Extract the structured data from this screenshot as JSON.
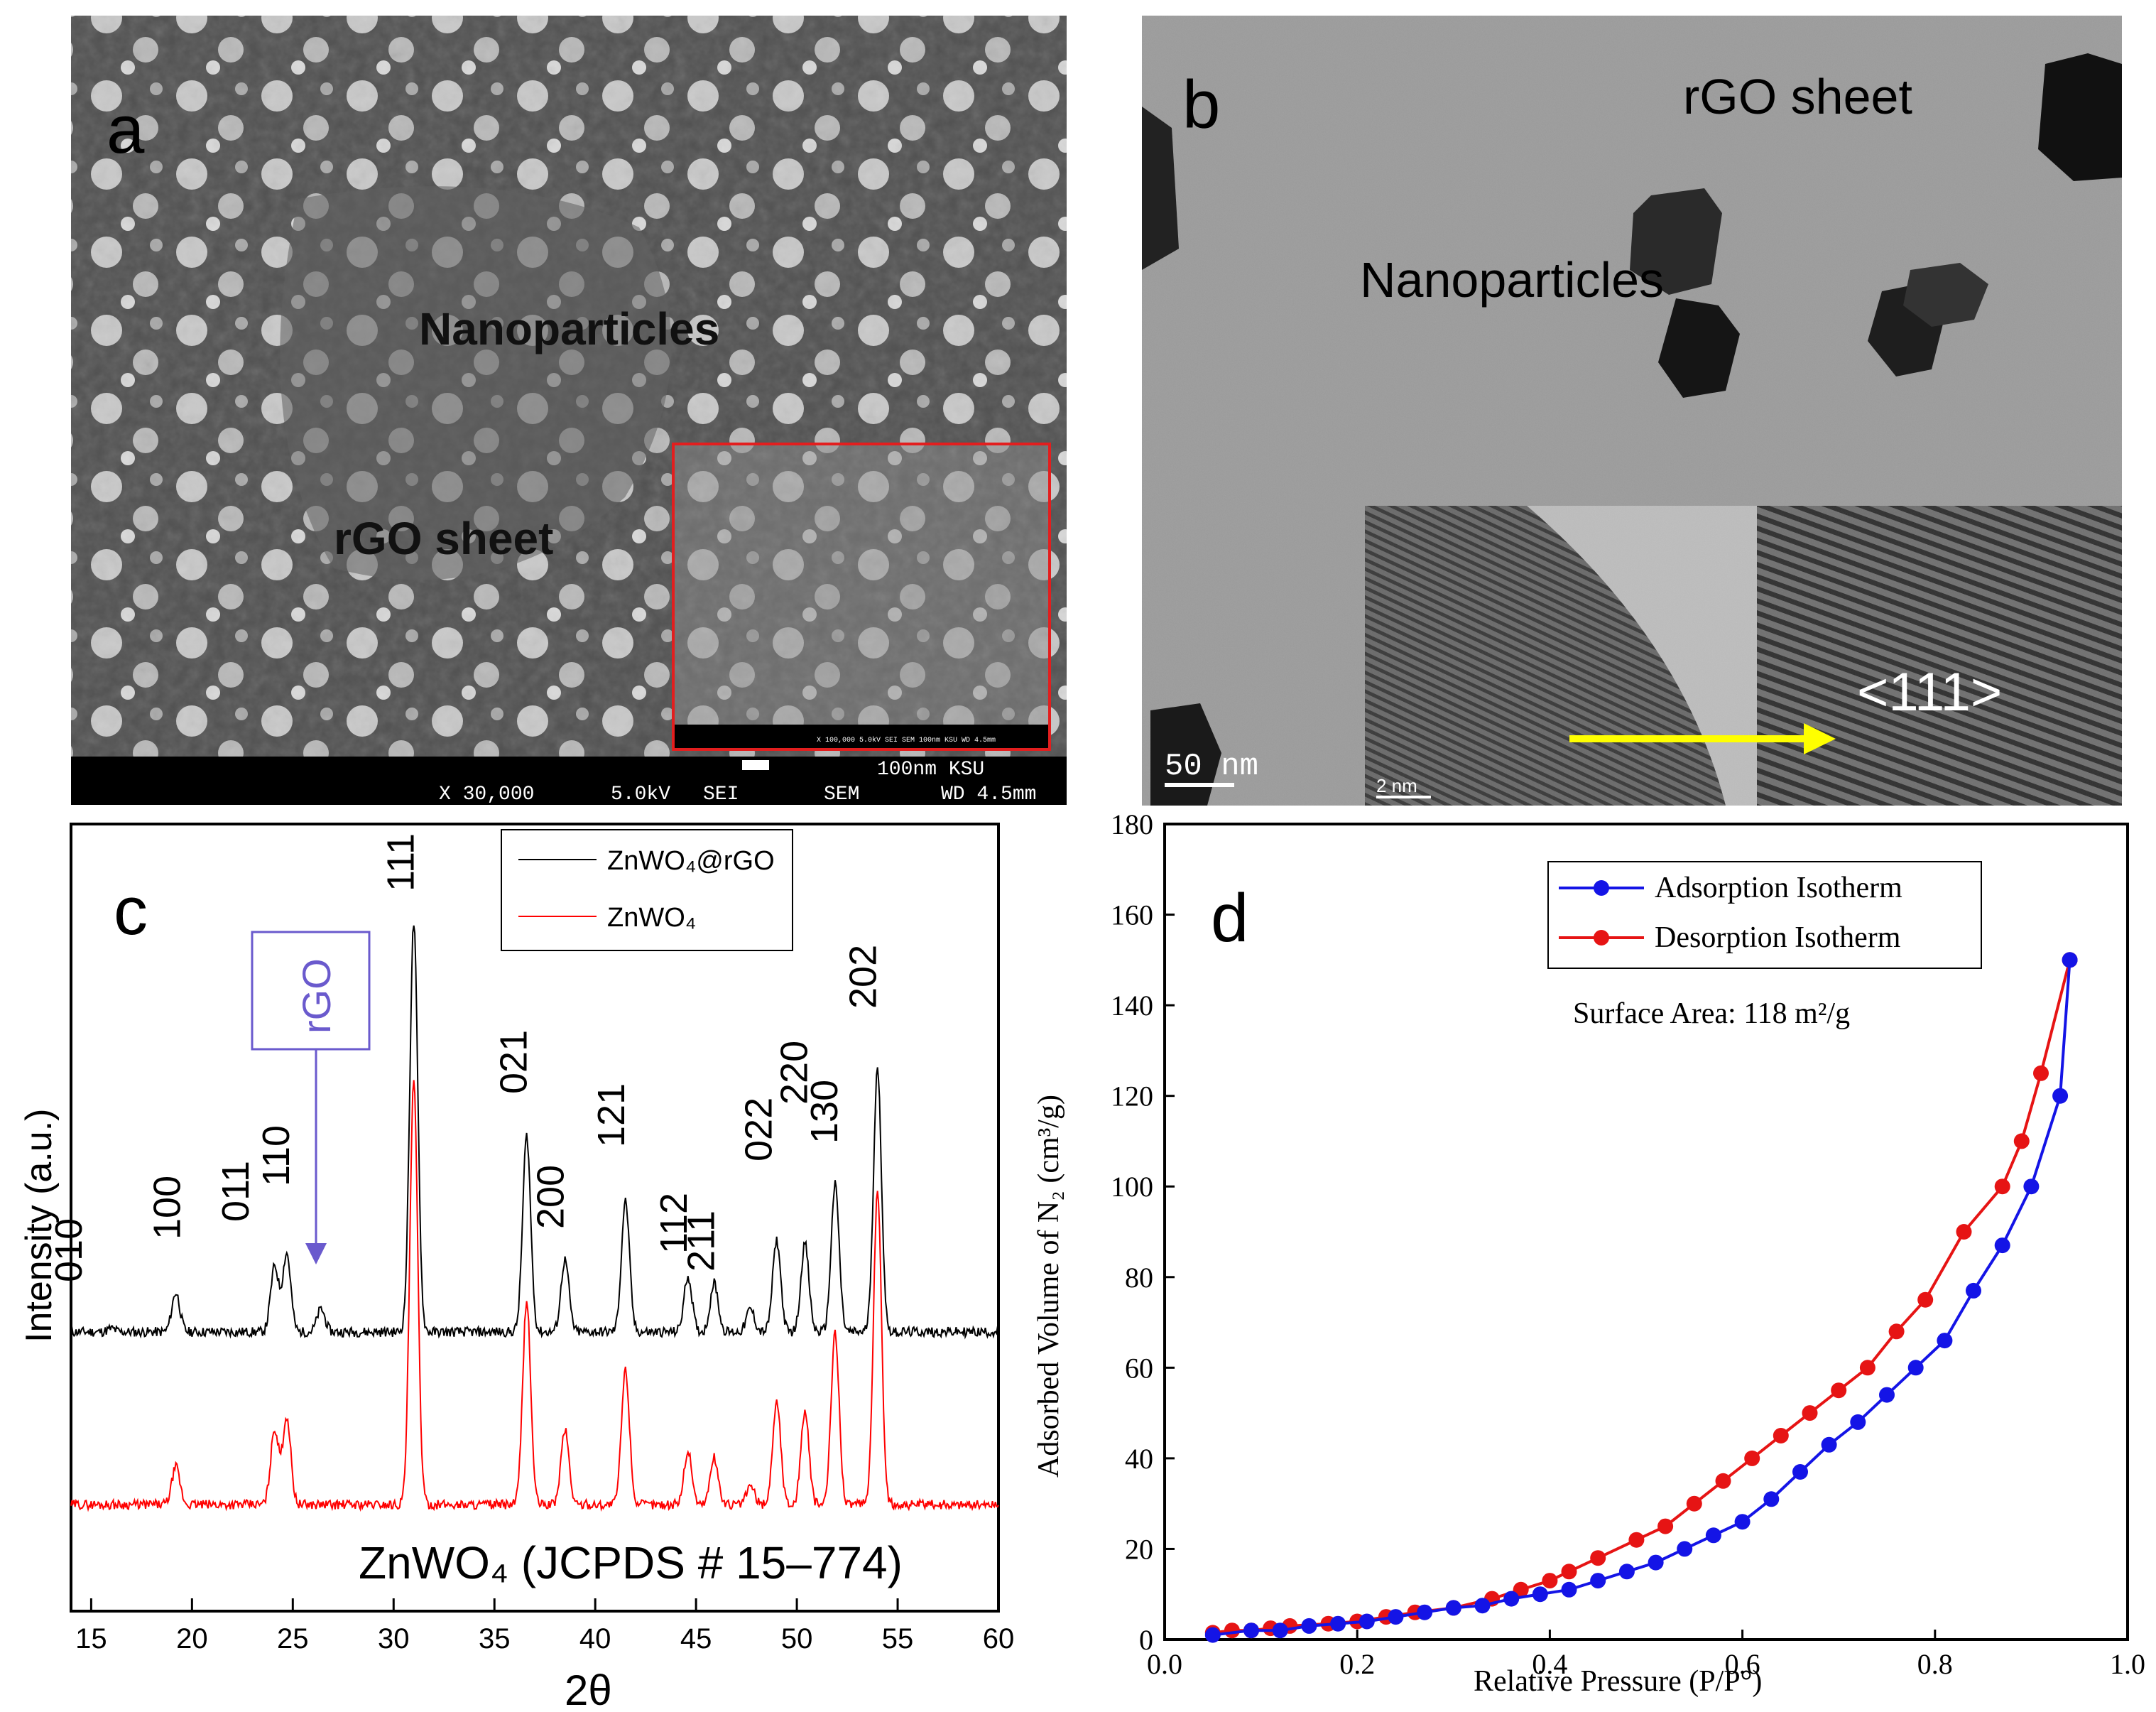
{
  "panel_a": {
    "letter": "a",
    "label_nanoparticles": "Nanoparticles",
    "label_rgo": "rGO sheet",
    "scalebar_text": "100nm KSU",
    "info": [
      "X 30,000",
      "5.0kV",
      "SEI",
      "SEM",
      "WD 4.5mm"
    ],
    "inset_info": "X 100,000  5.0kV  SEI  SEM  100nm KSU  WD 4.5mm"
  },
  "panel_b": {
    "letter": "b",
    "label_rgo": "rGO sheet",
    "label_nanoparticles": "Nanoparticles",
    "scalebar_main": "50 nm",
    "scalebar_inset": "2 nm",
    "direction_label": "<111>"
  },
  "panel_c": {
    "letter": "c",
    "xlabel": "2θ",
    "ylabel": "Intensity (a.u.)",
    "annotation": "ZnWO₄ (JCPDS # 15–774)",
    "rgo_box": "rGO",
    "legend": [
      "ZnWO₄@rGO",
      "ZnWO₄"
    ],
    "peak_labels": [
      "010",
      "100",
      "011",
      "110",
      "111",
      "021",
      "200",
      "121",
      "112",
      "211",
      "022",
      "220",
      "130",
      "202"
    ]
  },
  "panel_d": {
    "letter": "d",
    "xlabel": "Relative Pressure (P/P°)",
    "ylabel": "Adsorbed Volume of N₂ (cm³/g)",
    "surface_area": "Surface Area: 118 m²/g",
    "legend": [
      "Adsorption Isotherm",
      "Desorption Isotherm"
    ]
  },
  "chart_data": [
    {
      "type": "line",
      "title": "",
      "xlabel": "2θ",
      "ylabel": "Intensity (a.u.)",
      "xlim": [
        14,
        60
      ],
      "xticks": [
        15,
        20,
        25,
        30,
        35,
        40,
        45,
        50,
        55,
        60
      ],
      "series": [
        {
          "name": "ZnWO₄@rGO",
          "color": "#000000",
          "peaks": [
            [
              16,
              1
            ],
            [
              19.2,
              12
            ],
            [
              24.1,
              20
            ],
            [
              24.7,
              24
            ],
            [
              26.4,
              7
            ],
            [
              31.0,
              125
            ],
            [
              36.6,
              60
            ],
            [
              38.5,
              22
            ],
            [
              41.5,
              40
            ],
            [
              44.6,
              17
            ],
            [
              45.9,
              15
            ],
            [
              47.7,
              7
            ],
            [
              49.0,
              28
            ],
            [
              50.4,
              27
            ],
            [
              51.9,
              45
            ],
            [
              54.0,
              80
            ]
          ]
        },
        {
          "name": "ZnWO₄",
          "color": "#ff0000",
          "peaks": [
            [
              19.2,
              12
            ],
            [
              24.1,
              24
            ],
            [
              24.7,
              28
            ],
            [
              31.0,
              135
            ],
            [
              36.6,
              65
            ],
            [
              38.5,
              24
            ],
            [
              41.5,
              43
            ],
            [
              44.6,
              17
            ],
            [
              45.9,
              15
            ],
            [
              47.7,
              6
            ],
            [
              49.0,
              33
            ],
            [
              50.4,
              30
            ],
            [
              51.9,
              55
            ],
            [
              54.0,
              100
            ]
          ]
        }
      ],
      "peak_positions": {
        "010": 16,
        "100": 19.2,
        "011": 24.1,
        "110": 24.7,
        "rGO": 26.4,
        "111": 31.0,
        "021": 36.6,
        "200": 38.5,
        "121": 41.5,
        "112": 44.6,
        "211": 45.9,
        "022": 49.0,
        "220": 50.4,
        "130": 51.9,
        "202": 54.0
      }
    },
    {
      "type": "line",
      "title": "",
      "xlabel": "Relative Pressure (P/P°)",
      "ylabel": "Adsorbed Volume of N₂ (cm³/g)",
      "xlim": [
        0.0,
        1.0
      ],
      "ylim": [
        0,
        180
      ],
      "xticks": [
        0.0,
        0.2,
        0.4,
        0.6,
        0.8,
        1.0
      ],
      "yticks": [
        0,
        20,
        40,
        60,
        80,
        100,
        120,
        140,
        160,
        180
      ],
      "series": [
        {
          "name": "Adsorption Isotherm",
          "color": "#1414e6",
          "x": [
            0.05,
            0.09,
            0.12,
            0.15,
            0.18,
            0.21,
            0.24,
            0.27,
            0.3,
            0.33,
            0.36,
            0.39,
            0.42,
            0.45,
            0.48,
            0.51,
            0.54,
            0.57,
            0.6,
            0.63,
            0.66,
            0.69,
            0.72,
            0.75,
            0.78,
            0.81,
            0.84,
            0.87,
            0.9,
            0.93,
            0.94
          ],
          "y": [
            1,
            2,
            2,
            3,
            3.5,
            4,
            5,
            6,
            7,
            7.5,
            9,
            10,
            11,
            13,
            15,
            17,
            20,
            23,
            26,
            31,
            37,
            43,
            48,
            54,
            60,
            66,
            77,
            87,
            100,
            120,
            150
          ]
        },
        {
          "name": "Desorption Isotherm",
          "color": "#e61414",
          "x": [
            0.05,
            0.07,
            0.09,
            0.11,
            0.13,
            0.17,
            0.2,
            0.23,
            0.26,
            0.3,
            0.34,
            0.37,
            0.4,
            0.42,
            0.45,
            0.49,
            0.52,
            0.55,
            0.58,
            0.61,
            0.64,
            0.67,
            0.7,
            0.73,
            0.76,
            0.79,
            0.83,
            0.87,
            0.89,
            0.91,
            0.94
          ],
          "y": [
            1.5,
            2,
            2,
            2.5,
            3,
            3.5,
            4,
            5,
            6,
            7,
            9,
            11,
            13,
            15,
            18,
            22,
            25,
            30,
            35,
            40,
            45,
            50,
            55,
            60,
            68,
            75,
            90,
            100,
            110,
            125,
            150
          ]
        }
      ]
    }
  ]
}
